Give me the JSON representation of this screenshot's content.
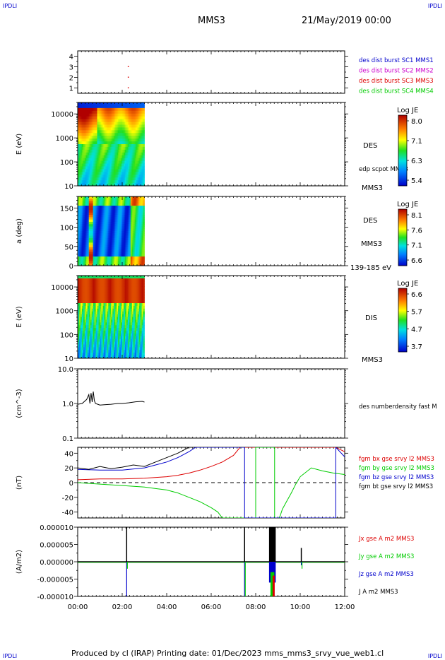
{
  "corner_tl": "IPDLI",
  "corner_tr": "IPDLI",
  "corner_bl": "IPDLI",
  "corner_br": "IPDLI",
  "header": {
    "spacecraft": "MMS3",
    "date": "21/May/2019 00:00"
  },
  "footer": {
    "text": "Produced by cl (IRAP)   Printing date: 01/Dec/2023   mms_mms3_srvy_vue_web1.cl"
  },
  "colors": {
    "sc1": "#0000cc",
    "sc2": "#cc00cc",
    "sc3": "#dd0000",
    "sc4": "#00cc00",
    "black": "#000000"
  },
  "time_axis": {
    "ticks": [
      "00:00",
      "02:00",
      "04:00",
      "06:00",
      "08:00",
      "10:00",
      "12:00"
    ],
    "range_hours": [
      0,
      12
    ]
  },
  "chart_data": [
    {
      "type": "scatter",
      "panel": "burst",
      "ylim": [
        0.5,
        4.5
      ],
      "y_ticks": [
        "1",
        "2",
        "3",
        "4"
      ],
      "legend": [
        "des dist burst SC1 MMS1",
        "des dist burst SC2 MMS2",
        "des dist burst SC3 MMS3",
        "des dist burst SC4 MMS4"
      ],
      "points": [
        {
          "x": 2.25,
          "y": 3
        },
        {
          "x": 2.25,
          "y": 2
        },
        {
          "x": 2.25,
          "y": 1
        }
      ]
    },
    {
      "type": "heatmap",
      "panel": "des_energy",
      "ylabel": "E (eV)",
      "y_ticks": [
        "10",
        "100",
        "1000",
        "10000"
      ],
      "yscale": "log",
      "ylim": [
        10,
        30000
      ],
      "data_end_hours": 3.0,
      "label": "DES",
      "sublabel": "edp scpot MMS3",
      "satellite": "MMS3",
      "colorbar": {
        "title": "Log JE",
        "ticks": [
          "8.0",
          "7.1",
          "6.3",
          "5.4"
        ]
      }
    },
    {
      "type": "heatmap",
      "panel": "des_pitch",
      "ylabel": "a (deg)",
      "y_ticks": [
        "0",
        "50",
        "100",
        "150"
      ],
      "ylim": [
        0,
        180
      ],
      "data_end_hours": 3.0,
      "label": "DES",
      "satellite": "MMS3",
      "energy_range": "139-185 eV",
      "colorbar": {
        "title": "Log JE",
        "ticks": [
          "8.1",
          "7.6",
          "7.1",
          "6.6"
        ]
      }
    },
    {
      "type": "heatmap",
      "panel": "dis_energy",
      "ylabel": "E (eV)",
      "y_ticks": [
        "10",
        "100",
        "1000",
        "10000"
      ],
      "yscale": "log",
      "ylim": [
        10,
        30000
      ],
      "data_end_hours": 3.0,
      "label": "DIS",
      "satellite": "MMS3",
      "colorbar": {
        "title": "Log JE",
        "ticks": [
          "6.6",
          "5.7",
          "4.7",
          "3.7"
        ]
      }
    },
    {
      "type": "line",
      "panel": "density",
      "ylabel": "(cm^-3)",
      "yscale": "log",
      "ylim": [
        0.1,
        10
      ],
      "y_ticks": [
        "10.0",
        "1.0",
        "0.1"
      ],
      "legend": [
        "des numberdensity fast M"
      ],
      "series": [
        {
          "name": "des numberdensity fast M",
          "x": [
            0.0,
            0.2,
            0.4,
            0.5,
            0.55,
            0.6,
            0.65,
            0.7,
            0.75,
            0.8,
            0.9,
            1.0,
            1.2,
            1.5,
            1.8,
            2.0,
            2.3,
            2.6,
            2.9,
            3.0
          ],
          "y": [
            0.95,
            1.0,
            1.3,
            1.8,
            1.0,
            2.0,
            1.1,
            2.2,
            1.2,
            1.0,
            0.95,
            0.9,
            0.92,
            0.95,
            1.0,
            1.0,
            1.05,
            1.12,
            1.15,
            1.1
          ]
        }
      ]
    },
    {
      "type": "line",
      "panel": "fgm",
      "ylabel": "(nT)",
      "ylim": [
        -48,
        48
      ],
      "y_ticks": [
        "40",
        "20",
        "0",
        "-20",
        "-40"
      ],
      "zero_line": true,
      "legend": [
        "fgm bx gse srvy l2 MMS3",
        "fgm by gse srvy l2 MMS3",
        "fgm bz gse srvy l2 MMS3",
        "fgm bt gse srvy l2 MMS3"
      ],
      "series": [
        {
          "name": "fgm bx gse srvy l2 MMS3",
          "x": [
            0,
            1,
            2,
            3,
            4,
            4.5,
            5,
            5.5,
            6,
            6.5,
            7,
            7.3,
            11.6,
            12
          ],
          "y": [
            4,
            5,
            5,
            6,
            8,
            10,
            13,
            17,
            22,
            28,
            37,
            48,
            48,
            42
          ]
        },
        {
          "name": "fgm by gse srvy l2 MMS3",
          "x": [
            0,
            1,
            2,
            3,
            3.5,
            4,
            4.5,
            5,
            5.5,
            6,
            6.3,
            6.5,
            8.0,
            8.0,
            8.85,
            8.85,
            9.05,
            9.1,
            9.2,
            9.4,
            9.6,
            9.8,
            10,
            10.5,
            11,
            11.5,
            12
          ],
          "y": [
            0,
            -2,
            -4,
            -6,
            -8,
            -10,
            -14,
            -20,
            -26,
            -34,
            -40,
            -48,
            -48,
            48,
            48,
            -48,
            -48,
            -45,
            -36,
            -25,
            -14,
            -2,
            8,
            20,
            16,
            13,
            11
          ]
        },
        {
          "name": "fgm bz gse srvy l2 MMS3",
          "x": [
            0,
            1,
            2,
            3,
            3.5,
            4,
            4.5,
            5,
            5.3,
            7.5,
            7.5,
            11.6,
            11.6,
            12
          ],
          "y": [
            18,
            17,
            17,
            20,
            24,
            28,
            34,
            42,
            48,
            48,
            -48,
            -48,
            48,
            35
          ]
        },
        {
          "name": "fgm bt gse srvy l2 MMS3",
          "x": [
            0,
            0.5,
            1,
            1.5,
            2,
            2.5,
            3,
            3.5,
            4,
            4.5,
            5
          ],
          "y": [
            20,
            18,
            22,
            19,
            21,
            24,
            22,
            28,
            34,
            40,
            48
          ]
        }
      ]
    },
    {
      "type": "line",
      "panel": "current",
      "ylabel": "(A/m2)",
      "ylim": [
        -1e-05,
        1e-05
      ],
      "y_ticks": [
        "0.000010",
        "0.000005",
        "0.000000",
        "-0.000005",
        "-0.000010"
      ],
      "legend": [
        "Jx gse A m2 MMS3",
        "Jy gse A m2 MMS3",
        "Jz gse A m2 MMS3",
        "J A m2 MMS3"
      ],
      "spikes": [
        {
          "x": 2.2,
          "black_top": 1.2e-05,
          "blue_bottom": -1.2e-05,
          "green_bottom": -2e-06
        },
        {
          "x": 7.5,
          "black_top": 1.2e-05,
          "blue_bottom": -1.2e-05,
          "green_bottom": -1e-05
        },
        {
          "x": 8.7,
          "black_top": 1.2e-05,
          "blue_bottom": -1.2e-05,
          "green_bottom": -1.2e-05
        },
        {
          "x": 10.05,
          "black_top": 4e-06,
          "blue_bottom": -1e-06,
          "green_bottom": -2e-06
        }
      ]
    }
  ]
}
